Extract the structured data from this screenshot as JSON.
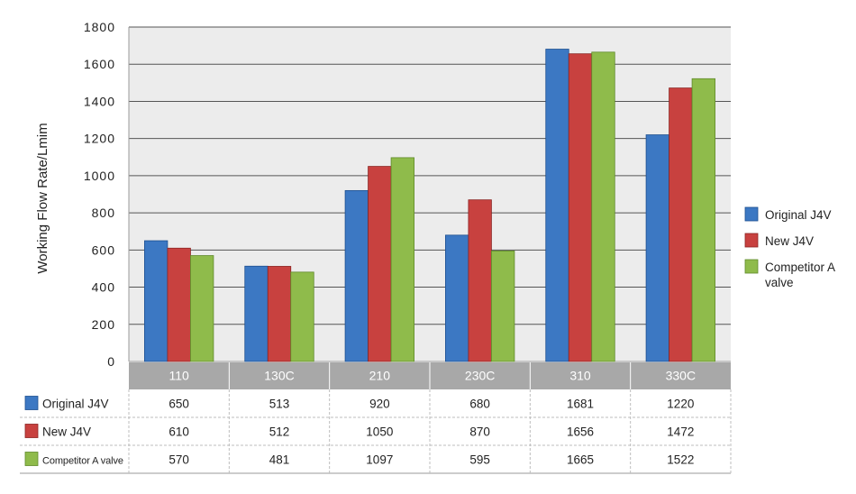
{
  "chart_data": {
    "type": "bar",
    "ylabel": "Working Flow Rate/Lmim",
    "xlabel": "",
    "title": "",
    "ylim": [
      0,
      1800
    ],
    "yticks": [
      0,
      200,
      400,
      600,
      800,
      1000,
      1200,
      1400,
      1600,
      1800
    ],
    "grid": true,
    "legend_position": "right",
    "data_table": true,
    "categories": [
      "110",
      "130C",
      "210",
      "230C",
      "310",
      "330C"
    ],
    "series": [
      {
        "name": "Original J4V",
        "table_label": "Original J4V",
        "legend_lines": [
          "Original J4V"
        ],
        "color": "#3c78c3",
        "edge": "#1d4f8f",
        "values": [
          650,
          513,
          920,
          680,
          1681,
          1220
        ]
      },
      {
        "name": "New J4V",
        "table_label": "New J4V",
        "legend_lines": [
          "New J4V"
        ],
        "color": "#c8413f",
        "edge": "#8c2422",
        "values": [
          610,
          512,
          1050,
          870,
          1656,
          1472
        ]
      },
      {
        "name": "Competitor A valve",
        "table_label": "Competitor A valve",
        "legend_lines": [
          "Competitor A",
          "valve"
        ],
        "color": "#8fbb4b",
        "edge": "#5f8a2a",
        "values": [
          570,
          481,
          1097,
          595,
          1665,
          1522
        ]
      }
    ],
    "colors": {
      "plot_bg": "#ececec",
      "grid": "#555555",
      "category_band": "#a8a8a8"
    }
  }
}
